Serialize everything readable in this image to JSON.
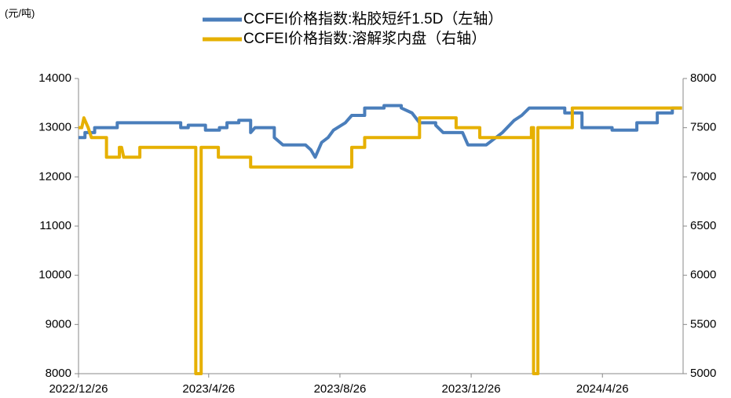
{
  "chart_data": {
    "type": "line",
    "unit_label": "(元/吨)",
    "xlim": [
      "2022/12/26",
      "2024/7/10"
    ],
    "xticks": [
      "2022/12/26",
      "2023/4/26",
      "2023/8/26",
      "2023/12/26",
      "2024/4/26"
    ],
    "ylim": [
      8000,
      14000
    ],
    "yticks": [
      8000,
      9000,
      10000,
      11000,
      12000,
      13000,
      14000
    ],
    "y2lim": [
      5000,
      8000
    ],
    "y2ticks": [
      5000,
      5500,
      6000,
      6500,
      7000,
      7500,
      8000
    ],
    "series": [
      {
        "name": "CCFEI价格指数:粘胶短纤1.5D（左轴）",
        "color": "#4a7ebb",
        "axis": "y",
        "x": [
          "2022/12/26",
          "2023/1/1",
          "2023/1/1",
          "2023/1/10",
          "2023/1/10",
          "2023/1/31",
          "2023/1/31",
          "2023/3/31",
          "2023/3/31",
          "2023/4/7",
          "2023/4/7",
          "2023/4/23",
          "2023/4/23",
          "2023/5/6",
          "2023/5/6",
          "2023/5/13",
          "2023/5/13",
          "2023/5/24",
          "2023/5/24",
          "2023/6/4",
          "2023/6/4",
          "2023/6/8",
          "2023/6/26",
          "2023/6/26",
          "2023/7/4",
          "2023/7/25",
          "2023/7/30",
          "2023/8/3",
          "2023/8/9",
          "2023/8/15",
          "2023/8/20",
          "2023/8/31",
          "2023/9/6",
          "2023/9/18",
          "2023/9/18",
          "2023/10/6",
          "2023/10/6",
          "2023/10/22",
          "2023/10/22",
          "2023/11/1",
          "2023/11/8",
          "2023/11/23",
          "2023/11/23",
          "2023/11/30",
          "2023/12/18",
          "2023/12/23",
          "2024/1/9",
          "2024/1/15",
          "2024/1/24",
          "2024/2/4",
          "2024/2/11",
          "2024/2/18",
          "2024/3/22",
          "2024/3/22",
          "2024/4/7",
          "2024/4/7",
          "2024/5/5",
          "2024/5/5",
          "2024/5/28",
          "2024/5/28",
          "2024/6/16",
          "2024/6/16",
          "2024/6/30",
          "2024/6/30",
          "2024/7/9"
        ],
        "values": [
          12800,
          12800,
          12900,
          12900,
          13000,
          13000,
          13100,
          13100,
          13000,
          13000,
          13050,
          13050,
          12950,
          12950,
          13000,
          13000,
          13100,
          13100,
          13150,
          13150,
          12900,
          13000,
          13000,
          12800,
          12650,
          12650,
          12550,
          12400,
          12700,
          12800,
          12950,
          13100,
          13250,
          13250,
          13400,
          13400,
          13450,
          13450,
          13400,
          13300,
          13100,
          13100,
          13050,
          12900,
          12900,
          12650,
          12650,
          12750,
          12900,
          13150,
          13250,
          13400,
          13400,
          13300,
          13300,
          13000,
          13000,
          12950,
          12950,
          13100,
          13100,
          13300,
          13300,
          13400,
          13400
        ]
      },
      {
        "name": "CCFEI价格指数:溶解浆内盘（右轴）",
        "color": "#e6b000",
        "axis": "y2",
        "x": [
          "2022/12/26",
          "2022/12/29",
          "2022/12/31",
          "2023/1/4",
          "2023/1/7",
          "2023/1/21",
          "2023/1/21",
          "2023/2/2",
          "2023/2/2",
          "2023/2/4",
          "2023/2/6",
          "2023/2/21",
          "2023/2/21",
          "2023/4/14",
          "2023/4/14",
          "2023/4/19",
          "2023/4/19",
          "2023/5/5",
          "2023/5/5",
          "2023/6/4",
          "2023/6/4",
          "2023/9/6",
          "2023/9/6",
          "2023/9/18",
          "2023/9/18",
          "2023/11/8",
          "2023/11/8",
          "2023/12/12",
          "2023/12/12",
          "2024/1/3",
          "2024/1/3",
          "2024/2/20",
          "2024/2/20",
          "2024/2/22",
          "2024/2/22",
          "2024/2/26",
          "2024/2/26",
          "2024/3/29",
          "2024/3/29",
          "2024/7/9"
        ],
        "values": [
          7500,
          7500,
          7600,
          7500,
          7400,
          7400,
          7200,
          7200,
          7300,
          7300,
          7200,
          7200,
          7300,
          7300,
          5000,
          5000,
          7300,
          7300,
          7200,
          7200,
          7100,
          7100,
          7300,
          7300,
          7400,
          7400,
          7600,
          7600,
          7500,
          7500,
          7400,
          7400,
          7500,
          7500,
          5000,
          5000,
          7500,
          7500,
          7700,
          7700
        ]
      }
    ]
  }
}
